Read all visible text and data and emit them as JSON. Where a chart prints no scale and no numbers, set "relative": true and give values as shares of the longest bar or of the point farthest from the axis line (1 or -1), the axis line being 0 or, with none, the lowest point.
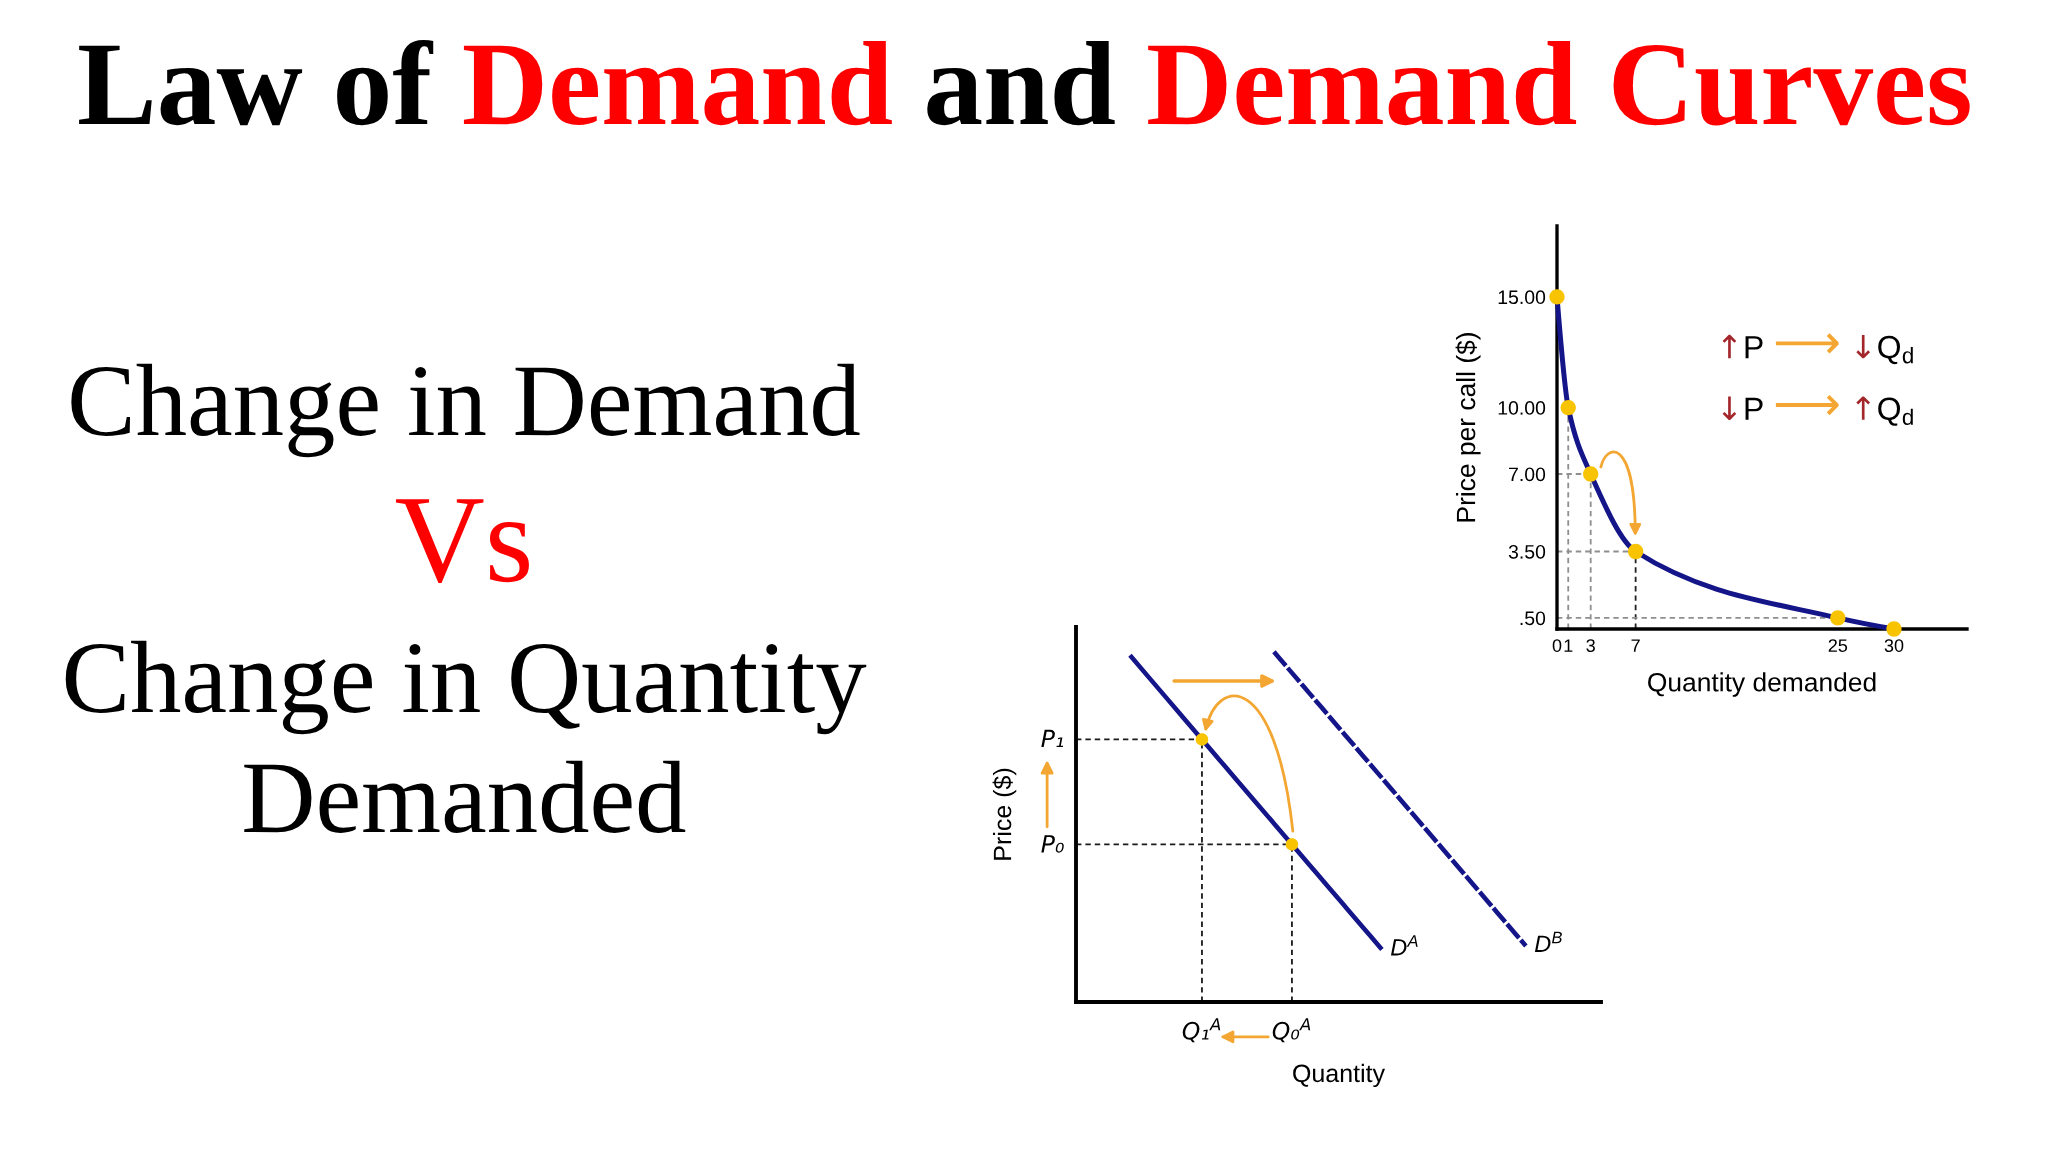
{
  "chart_data": [
    {
      "type": "other",
      "title": "Law of Demand and Demand Curves",
      "annotations": [
        "Change in Demand",
        "Vs",
        "Change in Quantity\nDemanded"
      ]
    },
    {
      "type": "line",
      "xlabel": "Quantity demanded",
      "ylabel": "Price per call ($)",
      "xlim": [
        0,
        36.5
      ],
      "ylim": [
        0,
        18.2
      ],
      "xticks": [
        0,
        1,
        3,
        7,
        25,
        30
      ],
      "yticks": [
        {
          "value": 0.5,
          "label": ".50"
        },
        {
          "value": 3.5,
          "label": "3.50"
        },
        {
          "value": 7,
          "label": "7.00"
        },
        {
          "value": 10,
          "label": "10.00"
        },
        {
          "value": 15,
          "label": "15.00"
        }
      ],
      "annotations": [
        "↑P ⟶ ↓Q$_{d}$",
        "↓P ⟶ ↑Q$_{d}$"
      ],
      "series": [
        {
          "type": "line",
          "color": "#8f8f8f",
          "line_style": "dashed",
          "x": [
            1,
            1
          ],
          "values": [
            0,
            10
          ]
        },
        {
          "type": "line",
          "color": "#8f8f8f",
          "line_style": "dashed",
          "x": [
            3,
            3
          ],
          "values": [
            0,
            7
          ]
        },
        {
          "type": "line",
          "color": "#222222",
          "line_style": "dashed",
          "x": [
            7,
            7
          ],
          "values": [
            0,
            3.5
          ]
        },
        {
          "type": "line",
          "color": "#8f8f8f",
          "line_style": "dashed",
          "x": [
            0,
            3
          ],
          "values": [
            7,
            7
          ]
        },
        {
          "type": "line",
          "color": "#8f8f8f",
          "line_style": "dashed",
          "x": [
            0,
            7
          ],
          "values": [
            3.5,
            3.5
          ]
        },
        {
          "type": "line",
          "color": "#8f8f8f",
          "line_style": "dashed",
          "x": [
            0,
            25
          ],
          "values": [
            0.5,
            0.5
          ]
        },
        {
          "type": "line",
          "color": "#15158a",
          "x": [
            0,
            1,
            3,
            7,
            25,
            30
          ],
          "values": [
            15,
            10,
            7,
            3.5,
            0.5,
            0
          ]
        },
        {
          "type": "scatter",
          "color": "#f8c300",
          "marker": "circle",
          "x": [
            0,
            1,
            3,
            7,
            25,
            30
          ],
          "values": [
            15,
            10,
            7,
            3.5,
            0.5,
            0
          ]
        }
      ]
    },
    {
      "type": "line",
      "relative": true,
      "xlabel": "Quantity",
      "ylabel": "Price ($)",
      "categories": [
        null,
        null,
        null,
        null,
        null,
        null,
        null,
        "Q₁$^{A}$",
        null,
        null,
        null,
        null,
        "Q₀$^{A}$",
        null,
        null,
        null,
        null,
        null,
        null,
        null,
        null,
        null,
        null,
        null,
        null,
        null
      ],
      "annotations": [
        "P₁",
        "P₀"
      ],
      "series": [
        {
          "type": "line",
          "color": "#1a1a1a",
          "line_style": "dashed",
          "values": [
            0.75,
            0.75,
            0.75,
            0.75,
            0.75,
            0.75,
            0.75,
            0.75,
            null,
            null,
            null,
            null,
            null,
            null,
            null,
            null,
            null,
            null,
            null,
            null,
            null,
            null,
            null,
            null,
            null,
            null
          ]
        },
        {
          "type": "line",
          "color": "#1a1a1a",
          "line_style": "dashed",
          "values": [
            0.45,
            0.45,
            0.45,
            0.45,
            0.45,
            0.45,
            0.45,
            0.45,
            0.45,
            0.45,
            0.45,
            0.45,
            0.45,
            null,
            null,
            null,
            null,
            null,
            null,
            null,
            null,
            null,
            null,
            null,
            null,
            null
          ]
        },
        {
          "name": "D$^{A}$",
          "type": "line",
          "color": "#15158a",
          "values": [
            null,
            null,
            null,
            0.99,
            0.93,
            0.87,
            0.81,
            0.75,
            0.69,
            0.63,
            0.57,
            0.51,
            0.45,
            0.39,
            0.33,
            0.27,
            0.21,
            0.15,
            null,
            null,
            null,
            null,
            null,
            null,
            null,
            null
          ]
        },
        {
          "name": "D$^{B}$",
          "type": "line",
          "color": "#15158a",
          "line_style": "dashed",
          "values": [
            null,
            null,
            null,
            null,
            null,
            null,
            null,
            null,
            null,
            null,
            null,
            1.0,
            0.94,
            0.88,
            0.82,
            0.76,
            0.7,
            0.64,
            0.58,
            0.52,
            0.46,
            0.4,
            0.34,
            0.28,
            0.22,
            0.16
          ]
        },
        {
          "type": "lollipop",
          "color": "#f8c300",
          "marker": "circle",
          "line_style": "dashed",
          "values": [
            null,
            null,
            null,
            null,
            null,
            null,
            null,
            0.75,
            null,
            null,
            null,
            null,
            0.45,
            null,
            null,
            null,
            null,
            null,
            null,
            null,
            null,
            null,
            null,
            null,
            null,
            null
          ]
        }
      ]
    }
  ]
}
